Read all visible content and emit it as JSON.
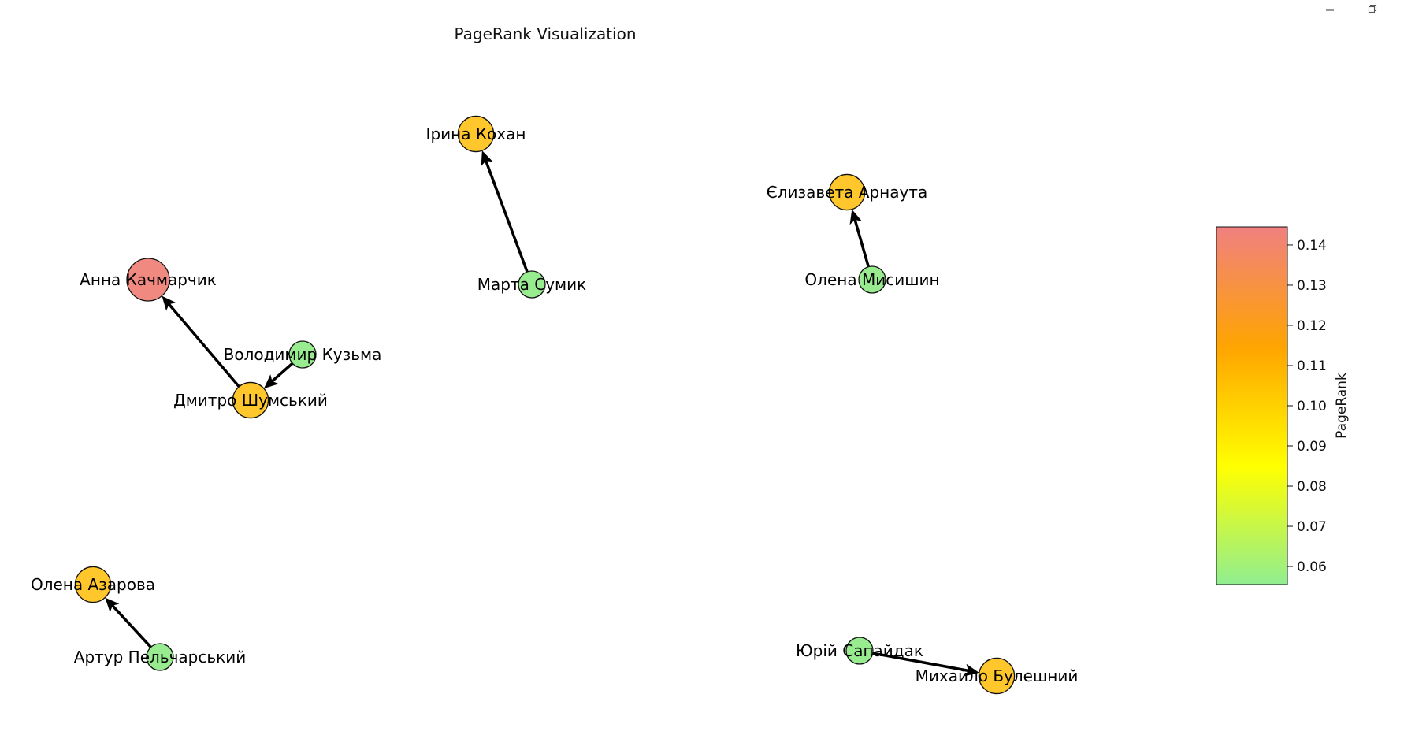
{
  "window": {
    "minimize_icon": "minimize-icon",
    "restore_icon": "restore-icon"
  },
  "figure": {
    "title": "PageRank Visualization"
  },
  "graph": {
    "nodes": [
      {
        "id": "anna",
        "label": "Анна Качмарчик",
        "pagerank": 0.143,
        "color": "#f08a80"
      },
      {
        "id": "dmytro",
        "label": "Дмитро Шумський",
        "pagerank": 0.105,
        "color": "#ffc72c"
      },
      {
        "id": "volodymyr",
        "label": "Володимир Кузьма",
        "pagerank": 0.057,
        "color": "#98ec8f"
      },
      {
        "id": "iryna",
        "label": "Ірина Кохан",
        "pagerank": 0.105,
        "color": "#ffc72c"
      },
      {
        "id": "marta",
        "label": "Марта Сумик",
        "pagerank": 0.057,
        "color": "#98ec8f"
      },
      {
        "id": "yelyzaveta",
        "label": "Єлизавета Арнаута",
        "pagerank": 0.105,
        "color": "#ffc72c"
      },
      {
        "id": "olena_m",
        "label": "Олена Мисишин",
        "pagerank": 0.057,
        "color": "#98ec8f"
      },
      {
        "id": "olena_a",
        "label": "Олена Азарова",
        "pagerank": 0.105,
        "color": "#ffc72c"
      },
      {
        "id": "artur",
        "label": "Артур Пельчарський",
        "pagerank": 0.057,
        "color": "#98ec8f"
      },
      {
        "id": "yurii",
        "label": "Юрій Сапайдак",
        "pagerank": 0.057,
        "color": "#98ec8f"
      },
      {
        "id": "mykhailo",
        "label": "Михайло Булешний",
        "pagerank": 0.105,
        "color": "#ffc72c"
      }
    ],
    "edges": [
      {
        "source": "dmytro",
        "target": "anna"
      },
      {
        "source": "volodymyr",
        "target": "dmytro"
      },
      {
        "source": "marta",
        "target": "iryna"
      },
      {
        "source": "olena_m",
        "target": "yelyzaveta"
      },
      {
        "source": "artur",
        "target": "olena_a"
      },
      {
        "source": "yurii",
        "target": "mykhailo"
      }
    ]
  },
  "colorbar": {
    "label": "PageRank",
    "min": 0.0555,
    "max": 0.1445,
    "ticks": [
      "0.06",
      "0.07",
      "0.08",
      "0.09",
      "0.10",
      "0.11",
      "0.12",
      "0.13",
      "0.14"
    ],
    "colors": {
      "low": "#90ee90",
      "yellow": "#ffff00",
      "orange": "#ffa500",
      "high": "#f08080"
    }
  }
}
